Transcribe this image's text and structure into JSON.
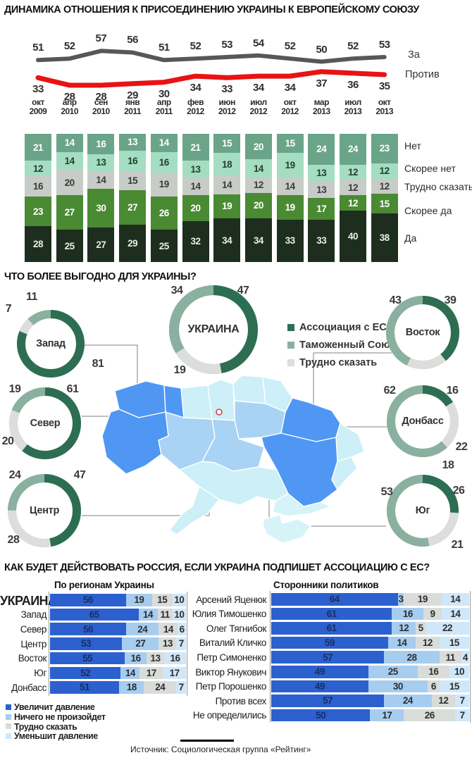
{
  "page": {
    "source": "Источник: Социологическая группа «Рейтинг»"
  },
  "chart_data": [
    {
      "id": "attitude_lines",
      "type": "line",
      "title": "ДИНАМИКА ОТНОШЕНИЯ К ПРИСОЕДИНЕНИЮ УКРАИНЫ К ЕВРОПЕЙСКОМУ СОЮЗУ",
      "x": [
        {
          "m": "окт",
          "y": "2009"
        },
        {
          "m": "апр",
          "y": "2010"
        },
        {
          "m": "сен",
          "y": "2010"
        },
        {
          "m": "янв",
          "y": "2011"
        },
        {
          "m": "апр",
          "y": "2011"
        },
        {
          "m": "фев",
          "y": "2012"
        },
        {
          "m": "июн",
          "y": "2012"
        },
        {
          "m": "июл",
          "y": "2012"
        },
        {
          "m": "окт",
          "y": "2012"
        },
        {
          "m": "мар",
          "y": "2013"
        },
        {
          "m": "июл",
          "y": "2013"
        },
        {
          "m": "окт",
          "y": "2013"
        }
      ],
      "series": [
        {
          "name": "За",
          "color": "#57575a",
          "values": [
            51,
            52,
            57,
            56,
            51,
            52,
            53,
            54,
            52,
            50,
            52,
            53
          ]
        },
        {
          "name": "Против",
          "color": "#e81313",
          "values": [
            33,
            28,
            28,
            29,
            30,
            34,
            33,
            34,
            34,
            37,
            36,
            35
          ]
        }
      ]
    },
    {
      "id": "attitude_stacked",
      "type": "bar",
      "stacked": true,
      "series": [
        {
          "name": "Нет",
          "color": "#6aa489",
          "text": "#ffffff",
          "values": [
            21,
            14,
            16,
            13,
            14,
            21,
            15,
            20,
            15,
            24,
            24,
            23
          ]
        },
        {
          "name": "Скорее нет",
          "color": "#a4ddc1",
          "text": "#23402f",
          "values": [
            12,
            14,
            13,
            16,
            16,
            13,
            18,
            14,
            19,
            13,
            12,
            12
          ]
        },
        {
          "name": "Трудно сказать",
          "color": "#c8ccc8",
          "text": "#3a3a3a",
          "values": [
            16,
            20,
            14,
            15,
            19,
            14,
            14,
            12,
            14,
            13,
            12,
            12
          ]
        },
        {
          "name": "Скорее да",
          "color": "#4a8a33",
          "text": "#ffffff",
          "values": [
            23,
            27,
            30,
            27,
            26,
            20,
            19,
            20,
            19,
            17,
            12,
            15
          ]
        },
        {
          "name": "Да",
          "color": "#1d2e1e",
          "text": "#e8ece7",
          "values": [
            28,
            25,
            27,
            29,
            25,
            32,
            34,
            34,
            33,
            33,
            40,
            38
          ]
        }
      ]
    },
    {
      "id": "benefit_donuts",
      "type": "pie",
      "title": "ЧТО БОЛЕЕ ВЫГОДНО ДЛЯ УКРАИНЫ?",
      "legend": [
        {
          "label": "Ассоциация с ЕС",
          "color": "#2d6e53"
        },
        {
          "label": "Таможенный Союз",
          "color": "#8ab0a0"
        },
        {
          "label": "Трудно сказать",
          "color": "#dcdedb"
        }
      ],
      "donuts": [
        {
          "name": "Запад",
          "assoc": 81,
          "customs": 11,
          "hard": 7
        },
        {
          "name": "УКРАИНА",
          "assoc": 47,
          "customs": 34,
          "hard": 19
        },
        {
          "name": "Восток",
          "assoc": 39,
          "customs": 43,
          "hard": 18
        },
        {
          "name": "Север",
          "assoc": 61,
          "customs": 19,
          "hard": 20
        },
        {
          "name": "Донбасс",
          "assoc": 16,
          "customs": 62,
          "hard": 22
        },
        {
          "name": "Центр",
          "assoc": 47,
          "customs": 24,
          "hard": 28
        },
        {
          "name": "Юг",
          "assoc": 26,
          "customs": 53,
          "hard": 21
        }
      ]
    },
    {
      "id": "russia_regions",
      "type": "bar",
      "stacked": true,
      "title": "КАК БУДЕТ ДЕЙСТВОВАТЬ РОССИЯ, ЕСЛИ УКРАИНА ПОДПИШЕТ АССОЦИАЦИЮ С ЕС?",
      "header": "По регионам Украины",
      "legend": [
        {
          "label": "Увеличит давление",
          "color": "#2c60cf",
          "text": "#172f63"
        },
        {
          "label": "Ничего не произойдет",
          "color": "#a6cdf0",
          "text": "#2d2d2d"
        },
        {
          "label": "Трудно сказать",
          "color": "#d9dcd9",
          "text": "#2d2d2d"
        },
        {
          "label": "Уменьшит давление",
          "color": "#cfe7f9",
          "text": "#2d2d2d"
        }
      ],
      "rows": [
        {
          "label": "УКРАИНА",
          "values": [
            56,
            19,
            15,
            10
          ]
        },
        {
          "label": "Запад",
          "values": [
            65,
            14,
            11,
            10
          ]
        },
        {
          "label": "Север",
          "values": [
            56,
            24,
            14,
            6
          ]
        },
        {
          "label": "Центр",
          "values": [
            53,
            27,
            13,
            7
          ]
        },
        {
          "label": "Восток",
          "values": [
            55,
            16,
            13,
            16
          ]
        },
        {
          "label": "Юг",
          "values": [
            52,
            14,
            17,
            17
          ]
        },
        {
          "label": "Донбасс",
          "values": [
            51,
            18,
            24,
            7
          ]
        }
      ]
    },
    {
      "id": "russia_politicians",
      "type": "bar",
      "stacked": true,
      "header": "Сторонники политиков",
      "rows": [
        {
          "label": "Арсений Яценюк",
          "values": [
            64,
            3,
            19,
            14
          ]
        },
        {
          "label": "Юлия Тимошенко",
          "values": [
            61,
            16,
            9,
            14
          ]
        },
        {
          "label": "Олег Тягнибок",
          "values": [
            61,
            12,
            5,
            22
          ]
        },
        {
          "label": "Виталий Кличко",
          "values": [
            59,
            14,
            12,
            15
          ]
        },
        {
          "label": "Петр Симоненко",
          "values": [
            57,
            28,
            11,
            4
          ]
        },
        {
          "label": "Виктор Янукович",
          "values": [
            49,
            25,
            16,
            10
          ]
        },
        {
          "label": "Петр Порошенко",
          "values": [
            49,
            30,
            6,
            15
          ]
        },
        {
          "label": "Против всех",
          "values": [
            57,
            24,
            12,
            7
          ]
        },
        {
          "label": "Не определились",
          "values": [
            50,
            17,
            26,
            7
          ]
        }
      ]
    }
  ]
}
